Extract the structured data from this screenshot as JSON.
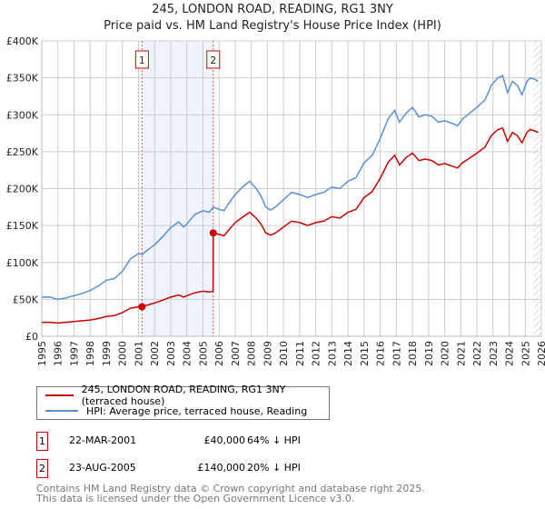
{
  "chart_data": {
    "type": "line",
    "title": "245, LONDON ROAD, READING, RG1 3NY",
    "subtitle": "Price paid vs. HM Land Registry's House Price Index (HPI)",
    "xlabel": "",
    "ylabel": "",
    "xlim": [
      1995,
      2026
    ],
    "ylim": [
      0,
      400000
    ],
    "x_ticks": [
      "1995",
      "1996",
      "1997",
      "1998",
      "1999",
      "2000",
      "2001",
      "2002",
      "2003",
      "2004",
      "2005",
      "2006",
      "2007",
      "2008",
      "2009",
      "2010",
      "2011",
      "2012",
      "2013",
      "2014",
      "2015",
      "2016",
      "2017",
      "2018",
      "2019",
      "2020",
      "2021",
      "2022",
      "2023",
      "2024",
      "2025",
      "2026"
    ],
    "y_ticks": [
      {
        "v": 0,
        "label": "£0"
      },
      {
        "v": 50000,
        "label": "£50K"
      },
      {
        "v": 100000,
        "label": "£100K"
      },
      {
        "v": 150000,
        "label": "£150K"
      },
      {
        "v": 200000,
        "label": "£200K"
      },
      {
        "v": 250000,
        "label": "£250K"
      },
      {
        "v": 300000,
        "label": "£300K"
      },
      {
        "v": 350000,
        "label": "£350K"
      },
      {
        "v": 400000,
        "label": "£400K"
      }
    ],
    "grid": true,
    "shaded_range": [
      2001.22,
      2005.64
    ],
    "forecast_hatch_from": 2025.5,
    "series": [
      {
        "name": "245, LONDON ROAD, READING, RG1 3NY (terraced house)",
        "color": "#cc0000",
        "points": [
          [
            1995,
            19
          ],
          [
            1995.5,
            19
          ],
          [
            1996,
            18
          ],
          [
            1996.5,
            19
          ],
          [
            1997,
            20
          ],
          [
            1997.5,
            21
          ],
          [
            1998,
            22
          ],
          [
            1998.5,
            24
          ],
          [
            1999,
            27
          ],
          [
            1999.5,
            28
          ],
          [
            2000,
            32
          ],
          [
            2000.5,
            38
          ],
          [
            2001,
            40
          ],
          [
            2001.22,
            40
          ],
          [
            2001.5,
            42
          ],
          [
            2002,
            45
          ],
          [
            2002.5,
            49
          ],
          [
            2003,
            53
          ],
          [
            2003.5,
            56
          ],
          [
            2003.8,
            53
          ],
          [
            2004,
            55
          ],
          [
            2004.5,
            59
          ],
          [
            2005,
            61
          ],
          [
            2005.4,
            60
          ],
          [
            2005.63,
            61
          ],
          [
            2005.64,
            140
          ],
          [
            2006,
            138
          ],
          [
            2006.3,
            136
          ],
          [
            2006.6,
            144
          ],
          [
            2007,
            154
          ],
          [
            2007.5,
            162
          ],
          [
            2007.9,
            168
          ],
          [
            2008.3,
            160
          ],
          [
            2008.6,
            152
          ],
          [
            2008.9,
            140
          ],
          [
            2009.2,
            137
          ],
          [
            2009.5,
            140
          ],
          [
            2010,
            148
          ],
          [
            2010.5,
            156
          ],
          [
            2011,
            154
          ],
          [
            2011.5,
            150
          ],
          [
            2012,
            154
          ],
          [
            2012.5,
            156
          ],
          [
            2013,
            162
          ],
          [
            2013.5,
            160
          ],
          [
            2014,
            168
          ],
          [
            2014.5,
            172
          ],
          [
            2015,
            188
          ],
          [
            2015.5,
            196
          ],
          [
            2016,
            214
          ],
          [
            2016.5,
            236
          ],
          [
            2016.9,
            245
          ],
          [
            2017.2,
            232
          ],
          [
            2017.6,
            242
          ],
          [
            2018,
            248
          ],
          [
            2018.4,
            238
          ],
          [
            2018.8,
            240
          ],
          [
            2019.2,
            238
          ],
          [
            2019.6,
            232
          ],
          [
            2020,
            234
          ],
          [
            2020.5,
            230
          ],
          [
            2020.8,
            228
          ],
          [
            2021.1,
            235
          ],
          [
            2021.6,
            242
          ],
          [
            2022,
            248
          ],
          [
            2022.5,
            256
          ],
          [
            2022.9,
            272
          ],
          [
            2023.3,
            280
          ],
          [
            2023.6,
            282
          ],
          [
            2023.9,
            264
          ],
          [
            2024.2,
            276
          ],
          [
            2024.5,
            272
          ],
          [
            2024.8,
            262
          ],
          [
            2025.1,
            276
          ],
          [
            2025.3,
            280
          ],
          [
            2025.6,
            278
          ],
          [
            2025.8,
            276
          ]
        ]
      },
      {
        "name": "HPI: Average price, terraced house, Reading",
        "color": "#5b8fd4",
        "points": [
          [
            1995,
            53
          ],
          [
            1995.5,
            53
          ],
          [
            1996,
            50
          ],
          [
            1996.5,
            52
          ],
          [
            1997,
            55
          ],
          [
            1997.5,
            58
          ],
          [
            1998,
            62
          ],
          [
            1998.5,
            68
          ],
          [
            1999,
            76
          ],
          [
            1999.5,
            78
          ],
          [
            2000,
            88
          ],
          [
            2000.5,
            105
          ],
          [
            2001,
            112
          ],
          [
            2001.25,
            111
          ],
          [
            2001.5,
            116
          ],
          [
            2002,
            124
          ],
          [
            2002.5,
            135
          ],
          [
            2003,
            147
          ],
          [
            2003.5,
            155
          ],
          [
            2003.8,
            148
          ],
          [
            2004,
            152
          ],
          [
            2004.5,
            165
          ],
          [
            2005,
            170
          ],
          [
            2005.4,
            168
          ],
          [
            2005.65,
            175
          ],
          [
            2006,
            172
          ],
          [
            2006.3,
            170
          ],
          [
            2006.6,
            180
          ],
          [
            2007,
            192
          ],
          [
            2007.5,
            203
          ],
          [
            2007.9,
            210
          ],
          [
            2008.3,
            200
          ],
          [
            2008.6,
            190
          ],
          [
            2008.9,
            175
          ],
          [
            2009.2,
            171
          ],
          [
            2009.5,
            175
          ],
          [
            2010,
            185
          ],
          [
            2010.5,
            195
          ],
          [
            2011,
            192
          ],
          [
            2011.5,
            188
          ],
          [
            2012,
            192
          ],
          [
            2012.5,
            195
          ],
          [
            2013,
            202
          ],
          [
            2013.5,
            200
          ],
          [
            2014,
            210
          ],
          [
            2014.5,
            215
          ],
          [
            2015,
            235
          ],
          [
            2015.5,
            245
          ],
          [
            2016,
            268
          ],
          [
            2016.5,
            295
          ],
          [
            2016.9,
            306
          ],
          [
            2017.2,
            290
          ],
          [
            2017.6,
            302
          ],
          [
            2018,
            310
          ],
          [
            2018.4,
            297
          ],
          [
            2018.8,
            300
          ],
          [
            2019.2,
            298
          ],
          [
            2019.6,
            290
          ],
          [
            2020,
            292
          ],
          [
            2020.5,
            288
          ],
          [
            2020.8,
            285
          ],
          [
            2021.1,
            294
          ],
          [
            2021.6,
            303
          ],
          [
            2022,
            310
          ],
          [
            2022.5,
            320
          ],
          [
            2022.9,
            340
          ],
          [
            2023.3,
            350
          ],
          [
            2023.6,
            353
          ],
          [
            2023.9,
            330
          ],
          [
            2024.2,
            345
          ],
          [
            2024.5,
            340
          ],
          [
            2024.8,
            327
          ],
          [
            2025.1,
            345
          ],
          [
            2025.3,
            350
          ],
          [
            2025.6,
            348
          ],
          [
            2025.8,
            345
          ]
        ]
      }
    ],
    "sales": [
      {
        "label": "1",
        "x": 2001.22,
        "value": 40000
      },
      {
        "label": "2",
        "x": 2005.64,
        "value": 140000
      }
    ]
  },
  "legend": {
    "property": "245, LONDON ROAD, READING, RG1 3NY (terraced house)",
    "hpi": "HPI: Average price, terraced house, Reading"
  },
  "transactions": [
    {
      "num": "1",
      "date": "22-MAR-2001",
      "price": "£40,000",
      "hpi": "64% ↓ HPI"
    },
    {
      "num": "2",
      "date": "23-AUG-2005",
      "price": "£140,000",
      "hpi": "20% ↓ HPI"
    }
  ],
  "footer": {
    "line1": "Contains HM Land Registry data © Crown copyright and database right 2025.",
    "line2": "This data is licensed under the Open Government Licence v3.0."
  },
  "colors": {
    "property": "#cc0000",
    "hpi": "#5b8fd4",
    "shade": "#eef3fc"
  }
}
